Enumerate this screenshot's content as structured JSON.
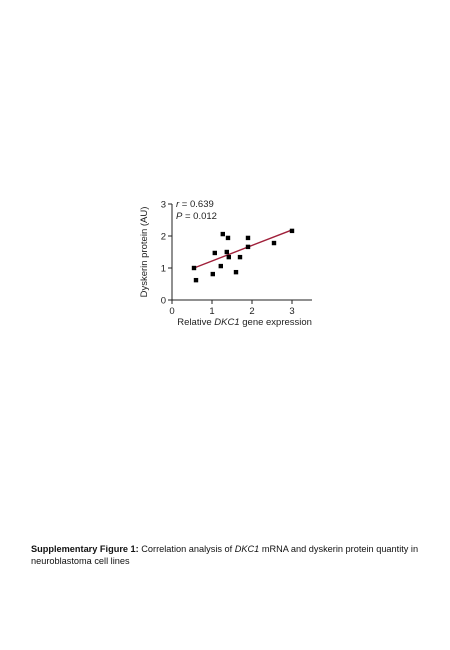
{
  "chart_data": {
    "type": "scatter",
    "xlabel": [
      "Relative ",
      "DKC1",
      " gene expression"
    ],
    "ylabel": "Dyskerin protein (AU)",
    "annotations": [
      {
        "var": "r",
        "text": " = 0.639"
      },
      {
        "var": "P",
        "text": " = 0.012"
      }
    ],
    "x": [
      0.55,
      0.6,
      1.02,
      1.07,
      1.22,
      1.27,
      1.4,
      1.37,
      1.42,
      1.6,
      1.7,
      1.9,
      1.9,
      2.55,
      3.0
    ],
    "y": [
      1.0,
      0.62,
      0.81,
      1.47,
      1.06,
      2.06,
      1.94,
      1.5,
      1.34,
      0.87,
      1.34,
      1.94,
      1.66,
      1.78,
      2.16
    ],
    "color": "#000000",
    "fit": {
      "x": [
        0.55,
        3.0
      ],
      "y": [
        1.0,
        2.19
      ],
      "color": "#a0203a"
    },
    "xlim": [
      0,
      3.5
    ],
    "ylim": [
      0,
      3
    ],
    "xticks": [
      0,
      1,
      2,
      3
    ],
    "yticks": [
      0,
      1,
      2,
      3
    ]
  },
  "caption": {
    "label": "Supplementary Figure 1:",
    "parts": [
      " Correlation analysis of ",
      "DKC1",
      " mRNA and dyskerin protein quantity in neuroblastoma cell lines"
    ]
  }
}
